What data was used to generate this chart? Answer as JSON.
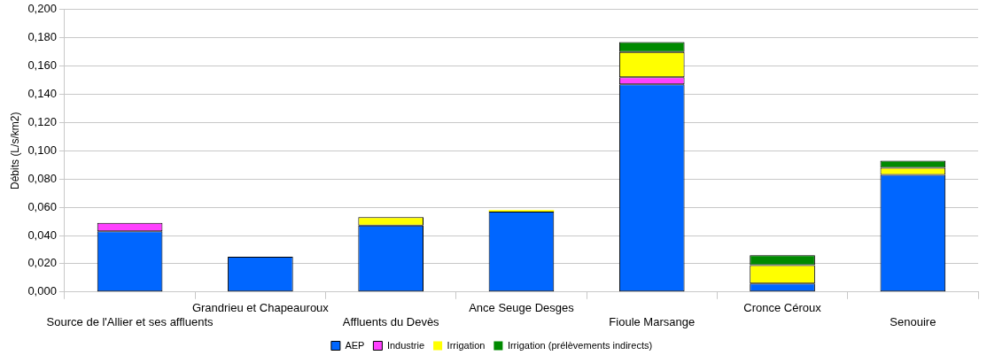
{
  "chart_data": {
    "type": "bar",
    "stacked": true,
    "ylabel": "Débits (L/s/km2)",
    "legend": "bottom",
    "grid": "y",
    "categories": [
      "Source de l'Allier et ses affluents",
      "Grandrieu et Chapeauroux",
      "Affluents du Devès",
      "Ance Seuge Desges",
      "Fioule Marsange",
      "Cronce Céroux",
      "Senouire"
    ],
    "ylim": [
      0,
      0.2
    ],
    "yticks": [
      {
        "value": 0,
        "label": "0,000"
      },
      {
        "value": 0.02,
        "label": "0,020"
      },
      {
        "value": 0.04,
        "label": "0,040"
      },
      {
        "value": 0.06,
        "label": "0,060"
      },
      {
        "value": 0.08,
        "label": "0,080"
      },
      {
        "value": 0.1,
        "label": "0,100"
      },
      {
        "value": 0.12,
        "label": "0,120"
      },
      {
        "value": 0.14,
        "label": "0,140"
      },
      {
        "value": 0.16,
        "label": "0,160"
      },
      {
        "value": 0.18,
        "label": "0,180"
      },
      {
        "value": 0.2,
        "label": "0,200"
      }
    ],
    "series": [
      {
        "name": "AEP",
        "color": "#0066ff",
        "values": [
          0.043,
          0.025,
          0.047,
          0.057,
          0.147,
          0.006,
          0.083
        ]
      },
      {
        "name": "Industrie",
        "color": "#ff40ff",
        "values": [
          0.006,
          0,
          0,
          0,
          0.005,
          0,
          0
        ]
      },
      {
        "name": "Irrigation",
        "color": "#ffff00",
        "values": [
          0,
          0,
          0.006,
          0.001,
          0.018,
          0.013,
          0.005
        ]
      },
      {
        "name": "Irrigation (prélèvements indirects)",
        "color": "#008a00",
        "values": [
          0,
          0,
          0,
          0,
          0.007,
          0.007,
          0.005
        ]
      }
    ]
  }
}
